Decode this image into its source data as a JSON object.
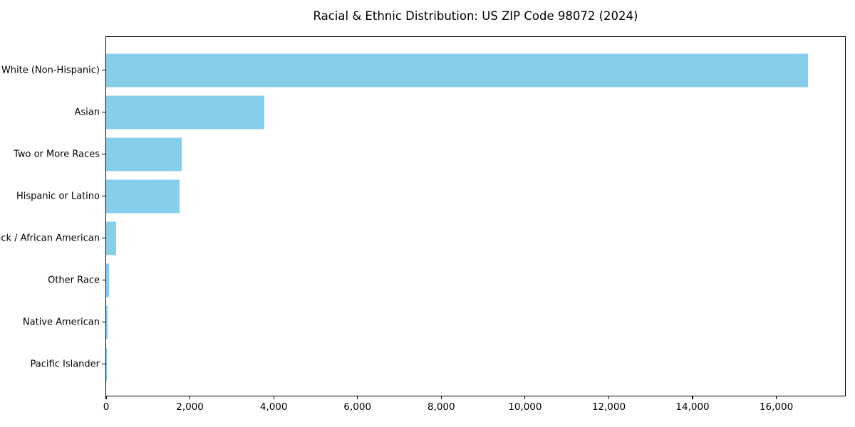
{
  "chart_data": {
    "type": "bar",
    "orientation": "horizontal",
    "title": "Racial & Ethnic Distribution: US ZIP Code 98072 (2024)",
    "categories": [
      "White (Non-Hispanic)",
      "Asian",
      "Two or More Races",
      "Hispanic or Latino",
      "Black / African American",
      "Other Race",
      "Native American",
      "Pacific Islander"
    ],
    "values": [
      16750,
      3775,
      1800,
      1750,
      240,
      70,
      30,
      10
    ],
    "xlabel": "",
    "ylabel": "",
    "xlim": [
      0,
      17640
    ],
    "xticks": [
      0,
      2000,
      4000,
      6000,
      8000,
      10000,
      12000,
      14000,
      16000
    ],
    "xtick_labels": [
      "0",
      "2,000",
      "4,000",
      "6,000",
      "8,000",
      "10,000",
      "12,000",
      "14,000",
      "16,000"
    ],
    "bar_color": "#87CEEB",
    "grid": false,
    "legend_position": "none"
  }
}
